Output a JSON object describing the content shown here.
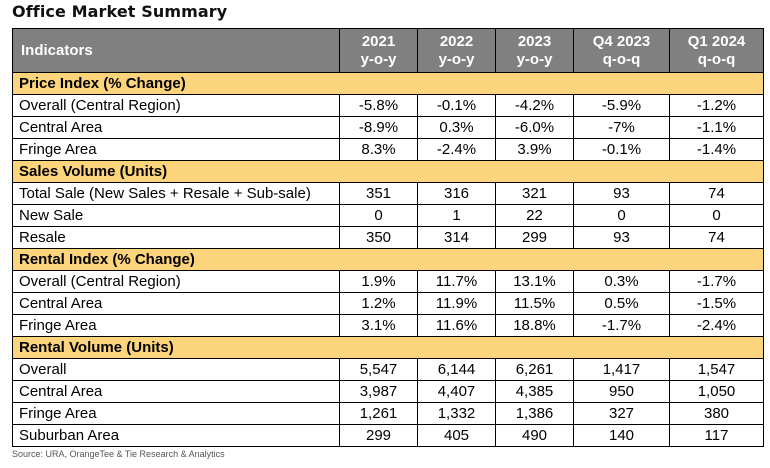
{
  "title": "Office Market Summary",
  "header": {
    "indicators": "Indicators",
    "periods": [
      {
        "line1": "2021",
        "line2": "y-o-y"
      },
      {
        "line1": "2022",
        "line2": "y-o-y"
      },
      {
        "line1": "2023",
        "line2": "y-o-y"
      },
      {
        "line1": "Q4 2023",
        "line2": "q-o-q"
      },
      {
        "line1": "Q1 2024",
        "line2": "q-o-q"
      }
    ]
  },
  "sections": [
    {
      "title": "Price Index (% Change)",
      "rows": [
        {
          "label": "Overall (Central Region)",
          "values": [
            "-5.8%",
            "-0.1%",
            "-4.2%",
            "-5.9%",
            "-1.2%"
          ]
        },
        {
          "label": "Central Area",
          "values": [
            "-8.9%",
            "0.3%",
            "-6.0%",
            "-7%",
            "-1.1%"
          ]
        },
        {
          "label": "Fringe Area",
          "values": [
            "8.3%",
            "-2.4%",
            "3.9%",
            "-0.1%",
            "-1.4%"
          ]
        }
      ]
    },
    {
      "title": "Sales Volume (Units)",
      "rows": [
        {
          "label": "Total Sale (New Sales + Resale + Sub-sale)",
          "values": [
            "351",
            "316",
            "321",
            "93",
            "74"
          ]
        },
        {
          "label": "New Sale",
          "values": [
            "0",
            "1",
            "22",
            "0",
            "0"
          ]
        },
        {
          "label": "Resale",
          "values": [
            "350",
            "314",
            "299",
            "93",
            "74"
          ]
        }
      ]
    },
    {
      "title": "Rental Index (% Change)",
      "rows": [
        {
          "label": "Overall (Central Region)",
          "values": [
            "1.9%",
            "11.7%",
            "13.1%",
            "0.3%",
            "-1.7%"
          ]
        },
        {
          "label": "Central Area",
          "values": [
            "1.2%",
            "11.9%",
            "11.5%",
            "0.5%",
            "-1.5%"
          ]
        },
        {
          "label": "Fringe Area",
          "values": [
            "3.1%",
            "11.6%",
            "18.8%",
            "-1.7%",
            "-2.4%"
          ]
        }
      ]
    },
    {
      "title": "Rental Volume (Units)",
      "rows": [
        {
          "label": "Overall",
          "values": [
            "5,547",
            "6,144",
            "6,261",
            "1,417",
            "1,547"
          ]
        },
        {
          "label": "Central Area",
          "values": [
            "3,987",
            "4,407",
            "4,385",
            "950",
            "1,050"
          ]
        },
        {
          "label": "Fringe Area",
          "values": [
            "1,261",
            "1,332",
            "1,386",
            "327",
            "380"
          ]
        },
        {
          "label": "Suburban Area",
          "values": [
            "299",
            "405",
            "490",
            "140",
            "117"
          ]
        }
      ]
    }
  ],
  "source": "Source: URA, OrangeTee & Tie Research & Analytics",
  "colors": {
    "header_bg": "#808080",
    "header_text": "#ffffff",
    "section_bg": "#fcd47c",
    "border": "#000000"
  }
}
